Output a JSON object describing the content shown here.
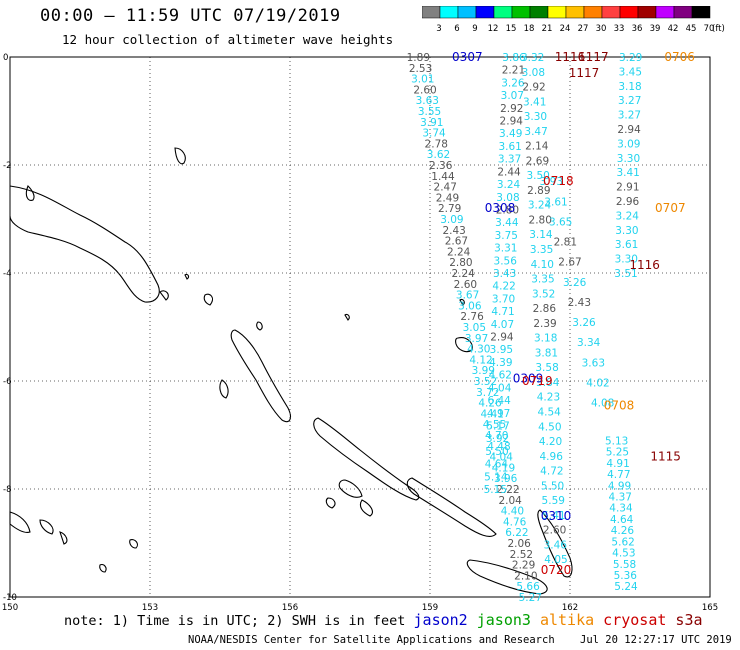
{
  "header": {
    "title": "00:00 – 11:59 UTC 07/19/2019",
    "subtitle": "12 hour collection of altimeter wave heights"
  },
  "legend": {
    "unit_label": "(ft)",
    "bins": [
      {
        "label": "3",
        "color": "#808080"
      },
      {
        "label": "6",
        "color": "#00ffff"
      },
      {
        "label": "9",
        "color": "#00c0ff"
      },
      {
        "label": "12",
        "color": "#0000ff"
      },
      {
        "label": "15",
        "color": "#00ff80"
      },
      {
        "label": "18",
        "color": "#00c000"
      },
      {
        "label": "21",
        "color": "#008000"
      },
      {
        "label": "24",
        "color": "#ffff00"
      },
      {
        "label": "27",
        "color": "#ffc000"
      },
      {
        "label": "30",
        "color": "#ff8000"
      },
      {
        "label": "33",
        "color": "#ff4040"
      },
      {
        "label": "36",
        "color": "#ff0000"
      },
      {
        "label": "39",
        "color": "#a00000"
      },
      {
        "label": "42",
        "color": "#c000ff"
      },
      {
        "label": "45",
        "color": "#800080"
      },
      {
        "label": "70",
        "color": "#000000"
      }
    ]
  },
  "axes": {
    "x_ticks": [
      "150",
      "153",
      "156",
      "159",
      "162",
      "165"
    ],
    "y_ticks": [
      "0",
      "-2",
      "-4",
      "-6",
      "-8",
      "-10"
    ]
  },
  "map": {
    "colors": {
      "gray": "#555555",
      "cyan": "#22d3ee",
      "blue": "#0000cc",
      "red": "#cc0000",
      "orange": "#ee8800",
      "darkred": "#880000"
    },
    "track_labels": [
      {
        "text": "0307",
        "lon": 159.8,
        "lat": 0.0,
        "color": "blue"
      },
      {
        "text": "0308",
        "lon": 160.5,
        "lat": -2.8,
        "color": "blue"
      },
      {
        "text": "0309",
        "lon": 161.1,
        "lat": -5.95,
        "color": "blue"
      },
      {
        "text": "0310",
        "lon": 161.7,
        "lat": -8.5,
        "color": "blue"
      },
      {
        "text": "1116",
        "lon": 162.0,
        "lat": 0.0,
        "color": "darkred"
      },
      {
        "text": "1117",
        "lon": 162.3,
        "lat": -0.3,
        "color": "darkred"
      },
      {
        "text": "1117",
        "lon": 162.5,
        "lat": 0.0,
        "color": "darkred"
      },
      {
        "text": "0718",
        "lon": 161.75,
        "lat": -2.3,
        "color": "red"
      },
      {
        "text": "0719",
        "lon": 161.3,
        "lat": -6.0,
        "color": "red"
      },
      {
        "text": "0720",
        "lon": 161.7,
        "lat": -9.5,
        "color": "red"
      },
      {
        "text": "1116",
        "lon": 163.6,
        "lat": -3.85,
        "color": "darkred"
      },
      {
        "text": "1115",
        "lon": 164.05,
        "lat": -7.4,
        "color": "darkred"
      },
      {
        "text": "0706",
        "lon": 164.35,
        "lat": 0.0,
        "color": "orange"
      },
      {
        "text": "0707",
        "lon": 164.15,
        "lat": -2.8,
        "color": "orange"
      },
      {
        "text": "0708",
        "lon": 163.05,
        "lat": -6.45,
        "color": "orange"
      }
    ],
    "tracks": [
      {
        "start_lon": 158.75,
        "start_lat": 0.0,
        "end_lon": 161.15,
        "end_lat": -10.0,
        "points": [
          {
            "v": "1.89",
            "c": "gray"
          },
          {
            "v": "2.53",
            "c": "gray"
          },
          {
            "v": "3.01",
            "c": "cyan"
          },
          {
            "v": "2.60",
            "c": "gray"
          },
          {
            "v": "3.63",
            "c": "cyan"
          },
          {
            "v": "3.55",
            "c": "cyan"
          },
          {
            "v": "3.91",
            "c": "cyan"
          },
          {
            "v": "3.74",
            "c": "cyan"
          },
          {
            "v": "2.78",
            "c": "gray"
          },
          {
            "v": "3.62",
            "c": "cyan"
          },
          {
            "v": "2.36",
            "c": "gray"
          },
          {
            "v": "1.44",
            "c": "gray"
          },
          {
            "v": "2.47",
            "c": "gray"
          },
          {
            "v": "2.49",
            "c": "gray"
          },
          {
            "v": "2.79",
            "c": "gray"
          },
          {
            "v": "3.09",
            "c": "cyan"
          },
          {
            "v": "2.43",
            "c": "gray"
          },
          {
            "v": "2.67",
            "c": "gray"
          },
          {
            "v": "2.24",
            "c": "gray"
          },
          {
            "v": "2.80",
            "c": "gray"
          },
          {
            "v": "2.24",
            "c": "gray"
          },
          {
            "v": "2.60",
            "c": "gray"
          },
          {
            "v": "3.67",
            "c": "cyan"
          },
          {
            "v": "3.06",
            "c": "cyan"
          },
          {
            "v": "2.76",
            "c": "gray"
          },
          {
            "v": "3.05",
            "c": "cyan"
          },
          {
            "v": "3.97",
            "c": "cyan"
          },
          {
            "v": "4.30",
            "c": "cyan"
          },
          {
            "v": "4.12",
            "c": "cyan"
          },
          {
            "v": "3.99",
            "c": "cyan"
          },
          {
            "v": "3.52",
            "c": "cyan"
          },
          {
            "v": "3.72",
            "c": "cyan"
          },
          {
            "v": "4.26",
            "c": "cyan"
          },
          {
            "v": "4.41",
            "c": "cyan"
          },
          {
            "v": "4.55",
            "c": "cyan"
          },
          {
            "v": "4.70",
            "c": "cyan"
          },
          {
            "v": "4.48",
            "c": "cyan"
          },
          {
            "v": "4.04",
            "c": "cyan"
          },
          {
            "v": "4.19",
            "c": "cyan"
          },
          {
            "v": "3.96",
            "c": "cyan"
          },
          {
            "v": "2.22",
            "c": "gray"
          },
          {
            "v": "2.04",
            "c": "gray"
          },
          {
            "v": "4.40",
            "c": "cyan"
          },
          {
            "v": "4.76",
            "c": "cyan"
          },
          {
            "v": "6.22",
            "c": "cyan"
          },
          {
            "v": "2.06",
            "c": "gray"
          },
          {
            "v": "2.52",
            "c": "gray"
          },
          {
            "v": "2.29",
            "c": "gray"
          },
          {
            "v": "2.10",
            "c": "gray"
          },
          {
            "v": "5.66",
            "c": "cyan"
          },
          {
            "v": "5.27",
            "c": "cyan"
          }
        ]
      },
      {
        "start_lon": 160.8,
        "start_lat": 0.0,
        "end_lon": 160.4,
        "end_lat": -8.0,
        "points": [
          {
            "v": "3.86",
            "c": "cyan"
          },
          {
            "v": "2.21",
            "c": "gray"
          },
          {
            "v": "3.26",
            "c": "cyan"
          },
          {
            "v": "3.07",
            "c": "cyan"
          },
          {
            "v": "2.92",
            "c": "gray"
          },
          {
            "v": "2.94",
            "c": "gray"
          },
          {
            "v": "3.49",
            "c": "cyan"
          },
          {
            "v": "3.61",
            "c": "cyan"
          },
          {
            "v": "3.37",
            "c": "cyan"
          },
          {
            "v": "2.44",
            "c": "gray"
          },
          {
            "v": "3.24",
            "c": "cyan"
          },
          {
            "v": "3.08",
            "c": "cyan"
          },
          {
            "v": "2.80",
            "c": "gray"
          },
          {
            "v": "3.44",
            "c": "cyan"
          },
          {
            "v": "3.75",
            "c": "cyan"
          },
          {
            "v": "3.31",
            "c": "cyan"
          },
          {
            "v": "3.56",
            "c": "cyan"
          },
          {
            "v": "3.43",
            "c": "cyan"
          },
          {
            "v": "4.22",
            "c": "cyan"
          },
          {
            "v": "3.70",
            "c": "cyan"
          },
          {
            "v": "4.71",
            "c": "cyan"
          },
          {
            "v": "4.07",
            "c": "cyan"
          },
          {
            "v": "2.94",
            "c": "gray"
          },
          {
            "v": "3.95",
            "c": "cyan"
          },
          {
            "v": "4.39",
            "c": "cyan"
          },
          {
            "v": "4.62",
            "c": "cyan"
          },
          {
            "v": "4.04",
            "c": "cyan"
          },
          {
            "v": "6.44",
            "c": "cyan"
          },
          {
            "v": "4.97",
            "c": "cyan"
          },
          {
            "v": "5.17",
            "c": "cyan"
          },
          {
            "v": "3.92",
            "c": "cyan"
          },
          {
            "v": "5.50",
            "c": "cyan"
          },
          {
            "v": "4.64",
            "c": "cyan"
          },
          {
            "v": "5.14",
            "c": "cyan"
          },
          {
            "v": "5.15",
            "c": "cyan"
          }
        ]
      },
      {
        "start_lon": 161.2,
        "start_lat": 0.0,
        "end_lon": 161.7,
        "end_lat": -9.3,
        "points": [
          {
            "v": "3.32",
            "c": "cyan"
          },
          {
            "v": "3.08",
            "c": "cyan"
          },
          {
            "v": "2.92",
            "c": "gray"
          },
          {
            "v": "3.41",
            "c": "cyan"
          },
          {
            "v": "3.30",
            "c": "cyan"
          },
          {
            "v": "3.47",
            "c": "cyan"
          },
          {
            "v": "2.14",
            "c": "gray"
          },
          {
            "v": "2.69",
            "c": "gray"
          },
          {
            "v": "3.50",
            "c": "cyan"
          },
          {
            "v": "2.89",
            "c": "gray"
          },
          {
            "v": "3.24",
            "c": "cyan"
          },
          {
            "v": "2.80",
            "c": "gray"
          },
          {
            "v": "3.14",
            "c": "cyan"
          },
          {
            "v": "3.35",
            "c": "cyan"
          },
          {
            "v": "4.10",
            "c": "cyan"
          },
          {
            "v": "3.35",
            "c": "cyan"
          },
          {
            "v": "3.52",
            "c": "cyan"
          },
          {
            "v": "2.86",
            "c": "gray"
          },
          {
            "v": "2.39",
            "c": "gray"
          },
          {
            "v": "3.18",
            "c": "cyan"
          },
          {
            "v": "3.81",
            "c": "cyan"
          },
          {
            "v": "3.58",
            "c": "cyan"
          },
          {
            "v": "3.84",
            "c": "cyan"
          },
          {
            "v": "4.23",
            "c": "cyan"
          },
          {
            "v": "4.54",
            "c": "cyan"
          },
          {
            "v": "4.50",
            "c": "cyan"
          },
          {
            "v": "4.20",
            "c": "cyan"
          },
          {
            "v": "4.96",
            "c": "cyan"
          },
          {
            "v": "4.72",
            "c": "cyan"
          },
          {
            "v": "5.50",
            "c": "cyan"
          },
          {
            "v": "5.59",
            "c": "cyan"
          },
          {
            "v": "5.41",
            "c": "cyan"
          },
          {
            "v": "2.60",
            "c": "gray"
          },
          {
            "v": "3.46",
            "c": "cyan"
          },
          {
            "v": "4.05",
            "c": "cyan"
          }
        ]
      },
      {
        "start_lon": 161.6,
        "start_lat": -2.3,
        "end_lon": 162.7,
        "end_lat": -6.4,
        "points": [
          {
            "v": "3.93",
            "c": "cyan"
          },
          {
            "v": "3.61",
            "c": "cyan"
          },
          {
            "v": "3.65",
            "c": "cyan"
          },
          {
            "v": "2.81",
            "c": "gray"
          },
          {
            "v": "2.67",
            "c": "gray"
          },
          {
            "v": "3.26",
            "c": "cyan"
          },
          {
            "v": "2.43",
            "c": "gray"
          },
          {
            "v": "3.26",
            "c": "cyan"
          },
          {
            "v": "3.34",
            "c": "cyan"
          },
          {
            "v": "3.63",
            "c": "cyan"
          },
          {
            "v": "4.02",
            "c": "cyan"
          },
          {
            "v": "4.08",
            "c": "cyan"
          }
        ]
      },
      {
        "start_lon": 163.3,
        "start_lat": 0.0,
        "end_lon": 163.2,
        "end_lat": -4.0,
        "points": [
          {
            "v": "3.29",
            "c": "cyan"
          },
          {
            "v": "3.45",
            "c": "cyan"
          },
          {
            "v": "3.18",
            "c": "cyan"
          },
          {
            "v": "3.27",
            "c": "cyan"
          },
          {
            "v": "3.27",
            "c": "cyan"
          },
          {
            "v": "2.94",
            "c": "gray"
          },
          {
            "v": "3.09",
            "c": "cyan"
          },
          {
            "v": "3.30",
            "c": "cyan"
          },
          {
            "v": "3.41",
            "c": "cyan"
          },
          {
            "v": "2.91",
            "c": "gray"
          },
          {
            "v": "2.96",
            "c": "gray"
          },
          {
            "v": "3.24",
            "c": "cyan"
          },
          {
            "v": "3.30",
            "c": "cyan"
          },
          {
            "v": "3.61",
            "c": "cyan"
          },
          {
            "v": "3.30",
            "c": "cyan"
          },
          {
            "v": "3.51",
            "c": "cyan"
          }
        ]
      },
      {
        "start_lon": 163.0,
        "start_lat": -7.1,
        "end_lon": 163.2,
        "end_lat": -9.8,
        "points": [
          {
            "v": "5.13",
            "c": "cyan"
          },
          {
            "v": "5.25",
            "c": "cyan"
          },
          {
            "v": "4.91",
            "c": "cyan"
          },
          {
            "v": "4.77",
            "c": "cyan"
          },
          {
            "v": "4.99",
            "c": "cyan"
          },
          {
            "v": "4.37",
            "c": "cyan"
          },
          {
            "v": "4.34",
            "c": "cyan"
          },
          {
            "v": "4.64",
            "c": "cyan"
          },
          {
            "v": "4.26",
            "c": "cyan"
          },
          {
            "v": "5.62",
            "c": "cyan"
          },
          {
            "v": "4.53",
            "c": "cyan"
          },
          {
            "v": "5.58",
            "c": "cyan"
          },
          {
            "v": "5.36",
            "c": "cyan"
          },
          {
            "v": "5.24",
            "c": "cyan"
          }
        ]
      }
    ]
  },
  "footer": {
    "note": "note: 1) Time is in UTC; 2) SWH is in feet",
    "missions": [
      {
        "name": "jason2",
        "color": "#0000cc"
      },
      {
        "name": "jason3",
        "color": "#00a000"
      },
      {
        "name": "altika",
        "color": "#ee8800"
      },
      {
        "name": "cryosat",
        "color": "#cc0000"
      },
      {
        "name": "s3a",
        "color": "#880000"
      }
    ],
    "credit": "NOAA/NESDIS Center for Satellite Applications and Research",
    "generated": "Jul 20 12:27:17 UTC 2019"
  }
}
